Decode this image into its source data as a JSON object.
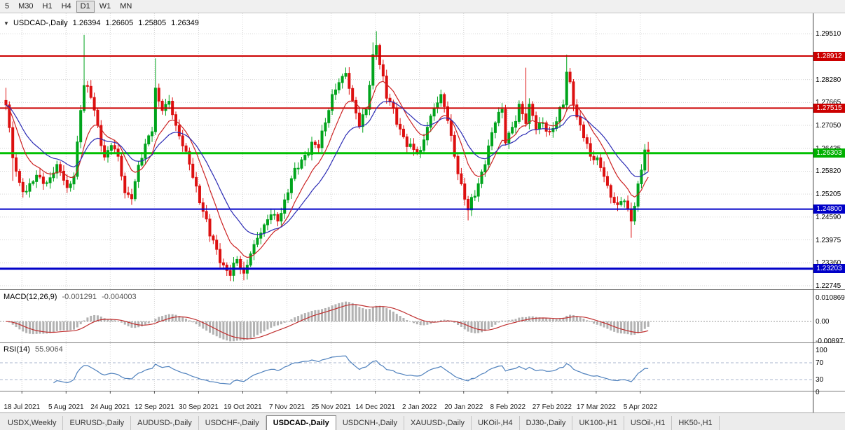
{
  "toolbar": {
    "timeframes": [
      "5",
      "M30",
      "H1",
      "H4",
      "D1",
      "W1",
      "MN"
    ],
    "active": "D1"
  },
  "chart": {
    "title": "USDCAD-,Daily",
    "ohlc": {
      "open": "1.26394",
      "high": "1.26605",
      "low": "1.25805",
      "close": "1.26349"
    },
    "price_axis_labels": [
      "1.29510",
      "1.28280",
      "1.27665",
      "1.27050",
      "1.26435",
      "1.25820",
      "1.25205",
      "1.24590",
      "1.23975",
      "1.23360",
      "1.22745"
    ],
    "badges": [
      {
        "text": "1.28912",
        "color": "#cc0000"
      },
      {
        "text": "1.27515",
        "color": "#cc0000"
      },
      {
        "text": "1.26303",
        "color": "#00b000"
      },
      {
        "text": "1.24800",
        "color": "#0000c8"
      },
      {
        "text": "1.23203",
        "color": "#0000c8"
      }
    ]
  },
  "macd": {
    "label": "MACD(12,26,9)",
    "value_main": "-0.001291",
    "value_signal": "-0.004003",
    "axis_labels": [
      "0.010869",
      "0.00",
      "-0.00897"
    ]
  },
  "rsi": {
    "label": "RSI(14)",
    "value": "55.9064",
    "axis_labels": [
      "100",
      "70",
      "30",
      "0"
    ]
  },
  "tabs": {
    "items": [
      "USDX,Weekly",
      "EURUSD-,Daily",
      "AUDUSD-,Daily",
      "USDCHF-,Daily",
      "USDCAD-,Daily",
      "USDCNH-,Daily",
      "XAUUSD-,Daily",
      "UKOil-,H4",
      "DJ30-,Daily",
      "UK100-,H1",
      "USOil-,H1",
      "HK50-,H1"
    ],
    "active": "USDCAD-,Daily"
  },
  "chart_data": {
    "type": "candlestick",
    "symbol": "USDCAD",
    "timeframe": "Daily",
    "title": "USDCAD-,Daily  1.26394 1.26605 1.25805 1.26349",
    "n_candles": 190,
    "x_labels": [
      "18 Jul 2021",
      "5 Aug 2021",
      "24 Aug 2021",
      "12 Sep 2021",
      "30 Sep 2021",
      "19 Oct 2021",
      "7 Nov 2021",
      "25 Nov 2021",
      "14 Dec 2021",
      "2 Jan 2022",
      "20 Jan 2022",
      "8 Feb 2022",
      "27 Feb 2022",
      "17 Mar 2022",
      "5 Apr 2022"
    ],
    "x_label_indices": [
      5,
      18,
      31,
      44,
      57,
      70,
      83,
      96,
      109,
      122,
      135,
      148,
      161,
      174,
      187
    ],
    "price_range": {
      "top": 1.3006,
      "bottom": 1.2265
    },
    "close_anchors": [
      [
        0,
        1.276
      ],
      [
        2,
        1.2618
      ],
      [
        4,
        1.2552
      ],
      [
        6,
        1.2528
      ],
      [
        9,
        1.2571
      ],
      [
        12,
        1.2551
      ],
      [
        15,
        1.26
      ],
      [
        18,
        1.2538
      ],
      [
        20,
        1.2568
      ],
      [
        22,
        1.2745
      ],
      [
        23,
        1.2812
      ],
      [
        25,
        1.278
      ],
      [
        27,
        1.2705
      ],
      [
        29,
        1.262
      ],
      [
        31,
        1.2651
      ],
      [
        33,
        1.2622
      ],
      [
        35,
        1.2524
      ],
      [
        37,
        1.2508
      ],
      [
        39,
        1.2598
      ],
      [
        41,
        1.2655
      ],
      [
        43,
        1.2688
      ],
      [
        44,
        1.2805
      ],
      [
        46,
        1.2745
      ],
      [
        48,
        1.277
      ],
      [
        50,
        1.2705
      ],
      [
        52,
        1.265
      ],
      [
        54,
        1.2601
      ],
      [
        56,
        1.2542
      ],
      [
        58,
        1.2474
      ],
      [
        60,
        1.2408
      ],
      [
        62,
        1.2372
      ],
      [
        64,
        1.233
      ],
      [
        66,
        1.2302
      ],
      [
        68,
        1.2345
      ],
      [
        70,
        1.2308
      ],
      [
        72,
        1.236
      ],
      [
        74,
        1.2402
      ],
      [
        76,
        1.2438
      ],
      [
        78,
        1.2465
      ],
      [
        80,
        1.2448
      ],
      [
        82,
        1.2505
      ],
      [
        84,
        1.2562
      ],
      [
        86,
        1.259
      ],
      [
        88,
        1.2625
      ],
      [
        90,
        1.266
      ],
      [
        92,
        1.2645
      ],
      [
        94,
        1.2712
      ],
      [
        96,
        1.2788
      ],
      [
        98,
        1.282
      ],
      [
        100,
        1.2845
      ],
      [
        102,
        1.2772
      ],
      [
        104,
        1.2702
      ],
      [
        106,
        1.2748
      ],
      [
        108,
        1.2895
      ],
      [
        109,
        1.292
      ],
      [
        110,
        1.2868
      ],
      [
        112,
        1.2778
      ],
      [
        114,
        1.2752
      ],
      [
        116,
        1.2695
      ],
      [
        118,
        1.2648
      ],
      [
        120,
        1.264
      ],
      [
        122,
        1.2638
      ],
      [
        124,
        1.27
      ],
      [
        126,
        1.2752
      ],
      [
        128,
        1.2788
      ],
      [
        130,
        1.2718
      ],
      [
        132,
        1.2622
      ],
      [
        134,
        1.2548
      ],
      [
        136,
        1.2478
      ],
      [
        138,
        1.2515
      ],
      [
        140,
        1.258
      ],
      [
        142,
        1.265
      ],
      [
        144,
        1.2712
      ],
      [
        146,
        1.2748
      ],
      [
        147,
        1.2658
      ],
      [
        149,
        1.27
      ],
      [
        151,
        1.2762
      ],
      [
        153,
        1.271
      ],
      [
        154,
        1.2762
      ],
      [
        156,
        1.2695
      ],
      [
        158,
        1.2712
      ],
      [
        160,
        1.2688
      ],
      [
        162,
        1.2715
      ],
      [
        164,
        1.276
      ],
      [
        165,
        1.2848
      ],
      [
        166,
        1.2822
      ],
      [
        168,
        1.2728
      ],
      [
        170,
        1.2672
      ],
      [
        172,
        1.2622
      ],
      [
        174,
        1.2618
      ],
      [
        176,
        1.2568
      ],
      [
        178,
        1.2512
      ],
      [
        180,
        1.2492
      ],
      [
        182,
        1.2502
      ],
      [
        184,
        1.2448
      ],
      [
        185,
        1.2488
      ],
      [
        186,
        1.2548
      ],
      [
        187,
        1.2585
      ],
      [
        188,
        1.2639
      ],
      [
        189,
        1.26349
      ]
    ],
    "wick_spikes_high": [
      [
        0,
        1.2806
      ],
      [
        23,
        1.2948
      ],
      [
        44,
        1.2885
      ],
      [
        108,
        1.2928
      ],
      [
        109,
        1.2958
      ],
      [
        153,
        1.286
      ],
      [
        165,
        1.2895
      ],
      [
        189,
        1.26605
      ]
    ],
    "wick_spikes_low": [
      [
        2,
        1.2556
      ],
      [
        66,
        1.2287
      ],
      [
        70,
        1.2289
      ],
      [
        136,
        1.245
      ],
      [
        184,
        1.2403
      ],
      [
        189,
        1.25805
      ]
    ],
    "horizontal_lines": [
      {
        "value": 1.28912,
        "color": "#cc0000",
        "width": 2
      },
      {
        "value": 1.27515,
        "color": "#cc0000",
        "width": 2
      },
      {
        "value": 1.26303,
        "color": "#00c000",
        "width": 3
      },
      {
        "value": 1.248,
        "color": "#0000c8",
        "width": 2
      },
      {
        "value": 1.23203,
        "color": "#0000c8",
        "width": 3
      }
    ],
    "moving_averages": [
      {
        "period": 10,
        "color": "#cc2222"
      },
      {
        "period": 21,
        "color": "#2b2bb4"
      }
    ],
    "macd": {
      "fast": 12,
      "slow": 26,
      "signal": 9,
      "current_main": -0.001291,
      "current_signal": -0.004003,
      "axis_max": 0.010869,
      "axis_min": -0.00897,
      "histogram_color": "#b2b2b2",
      "signal_color": "#c03030"
    },
    "rsi": {
      "period": 14,
      "current": 55.9064,
      "levels": [
        70,
        30
      ],
      "line_color": "#4f81bd"
    },
    "candle_up_color": "#00a41c",
    "candle_down_color": "#dd1111"
  }
}
